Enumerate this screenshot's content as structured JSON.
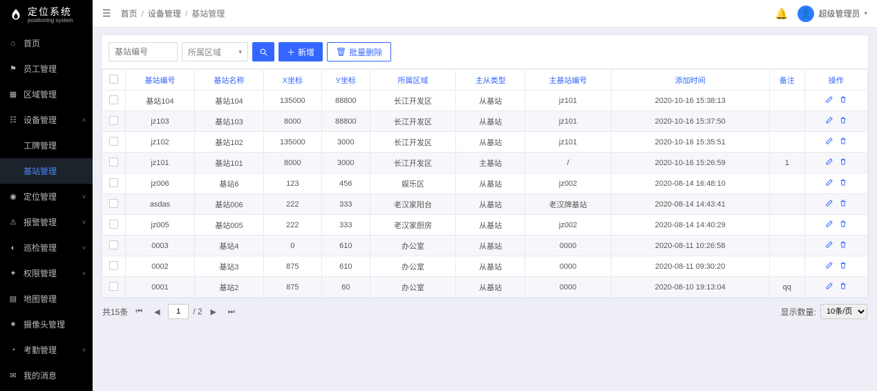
{
  "brand": {
    "cn": "定位系统",
    "en": "positioning system"
  },
  "menu": [
    {
      "icon": "⌂",
      "label": "首页"
    },
    {
      "icon": "⚑",
      "label": "员工管理"
    },
    {
      "icon": "▦",
      "label": "区域管理"
    },
    {
      "icon": "☷",
      "label": "设备管理",
      "expanded": true,
      "children": [
        {
          "label": "工牌管理"
        },
        {
          "label": "基站管理",
          "active": true
        }
      ]
    },
    {
      "icon": "◉",
      "label": "定位管理",
      "arrow": true
    },
    {
      "icon": "⚠",
      "label": "报警管理",
      "arrow": true
    },
    {
      "icon": "◐",
      "label": "巡检管理",
      "arrow": true
    },
    {
      "icon": "✦",
      "label": "权限管理",
      "arrow": true
    },
    {
      "icon": "▤",
      "label": "地图管理"
    },
    {
      "icon": "✷",
      "label": "摄像头管理"
    },
    {
      "icon": "◔",
      "label": "考勤管理",
      "arrow": true
    },
    {
      "icon": "✉",
      "label": "我的消息"
    }
  ],
  "breadcrumb": {
    "a": "首页",
    "b": "设备管理",
    "c": "基站管理"
  },
  "user": {
    "name": "超级管理员"
  },
  "toolbar": {
    "search_placeholder": "基站编号",
    "region_placeholder": "所属区域",
    "add_label": "新增",
    "batchdel_label": "批量删除"
  },
  "columns": [
    "基站编号",
    "基站名称",
    "X坐标",
    "Y坐标",
    "所属区域",
    "主从类型",
    "主基站编号",
    "添加时间",
    "备注",
    "操作"
  ],
  "rows": [
    [
      "基站104",
      "基站104",
      "135000",
      "88800",
      "长江开发区",
      "从基站",
      "jz101",
      "2020-10-16 15:38:13",
      ""
    ],
    [
      "jz103",
      "基站103",
      "8000",
      "88800",
      "长江开发区",
      "从基站",
      "jz101",
      "2020-10-16 15:37:50",
      ""
    ],
    [
      "jz102",
      "基站102",
      "135000",
      "3000",
      "长江开发区",
      "从基站",
      "jz101",
      "2020-10-16 15:35:51",
      ""
    ],
    [
      "jz101",
      "基站101",
      "8000",
      "3000",
      "长江开发区",
      "主基站",
      "/",
      "2020-10-16 15:26:59",
      "1"
    ],
    [
      "jz006",
      "基站6",
      "123",
      "456",
      "娱乐区",
      "从基站",
      "jz002",
      "2020-08-14 16:48:10",
      ""
    ],
    [
      "asdas",
      "基站006",
      "222",
      "333",
      "老汉家阳台",
      "从基站",
      "老汉牌基站",
      "2020-08-14 14:43:41",
      ""
    ],
    [
      "jz005",
      "基站005",
      "222",
      "333",
      "老汉家厨房",
      "从基站",
      "jz002",
      "2020-08-14 14:40:29",
      ""
    ],
    [
      "0003",
      "基站4",
      "0",
      "610",
      "办公室",
      "从基站",
      "0000",
      "2020-08-11 10:26:58",
      ""
    ],
    [
      "0002",
      "基站3",
      "875",
      "610",
      "办公室",
      "从基站",
      "0000",
      "2020-08-11 09:30:20",
      ""
    ],
    [
      "0001",
      "基站2",
      "875",
      "60",
      "办公室",
      "从基站",
      "0000",
      "2020-08-10 19:13:04",
      "qq"
    ]
  ],
  "pager": {
    "total_text": "共15条",
    "page": "1",
    "pages_text": "/ 2",
    "size_label": "显示数量:",
    "size_value": "10条/页"
  },
  "colors": {
    "primary": "#3366ff",
    "header_bg": "#ffffff",
    "body_bg": "#eeeff6",
    "sidebar_bg": "#000000"
  }
}
